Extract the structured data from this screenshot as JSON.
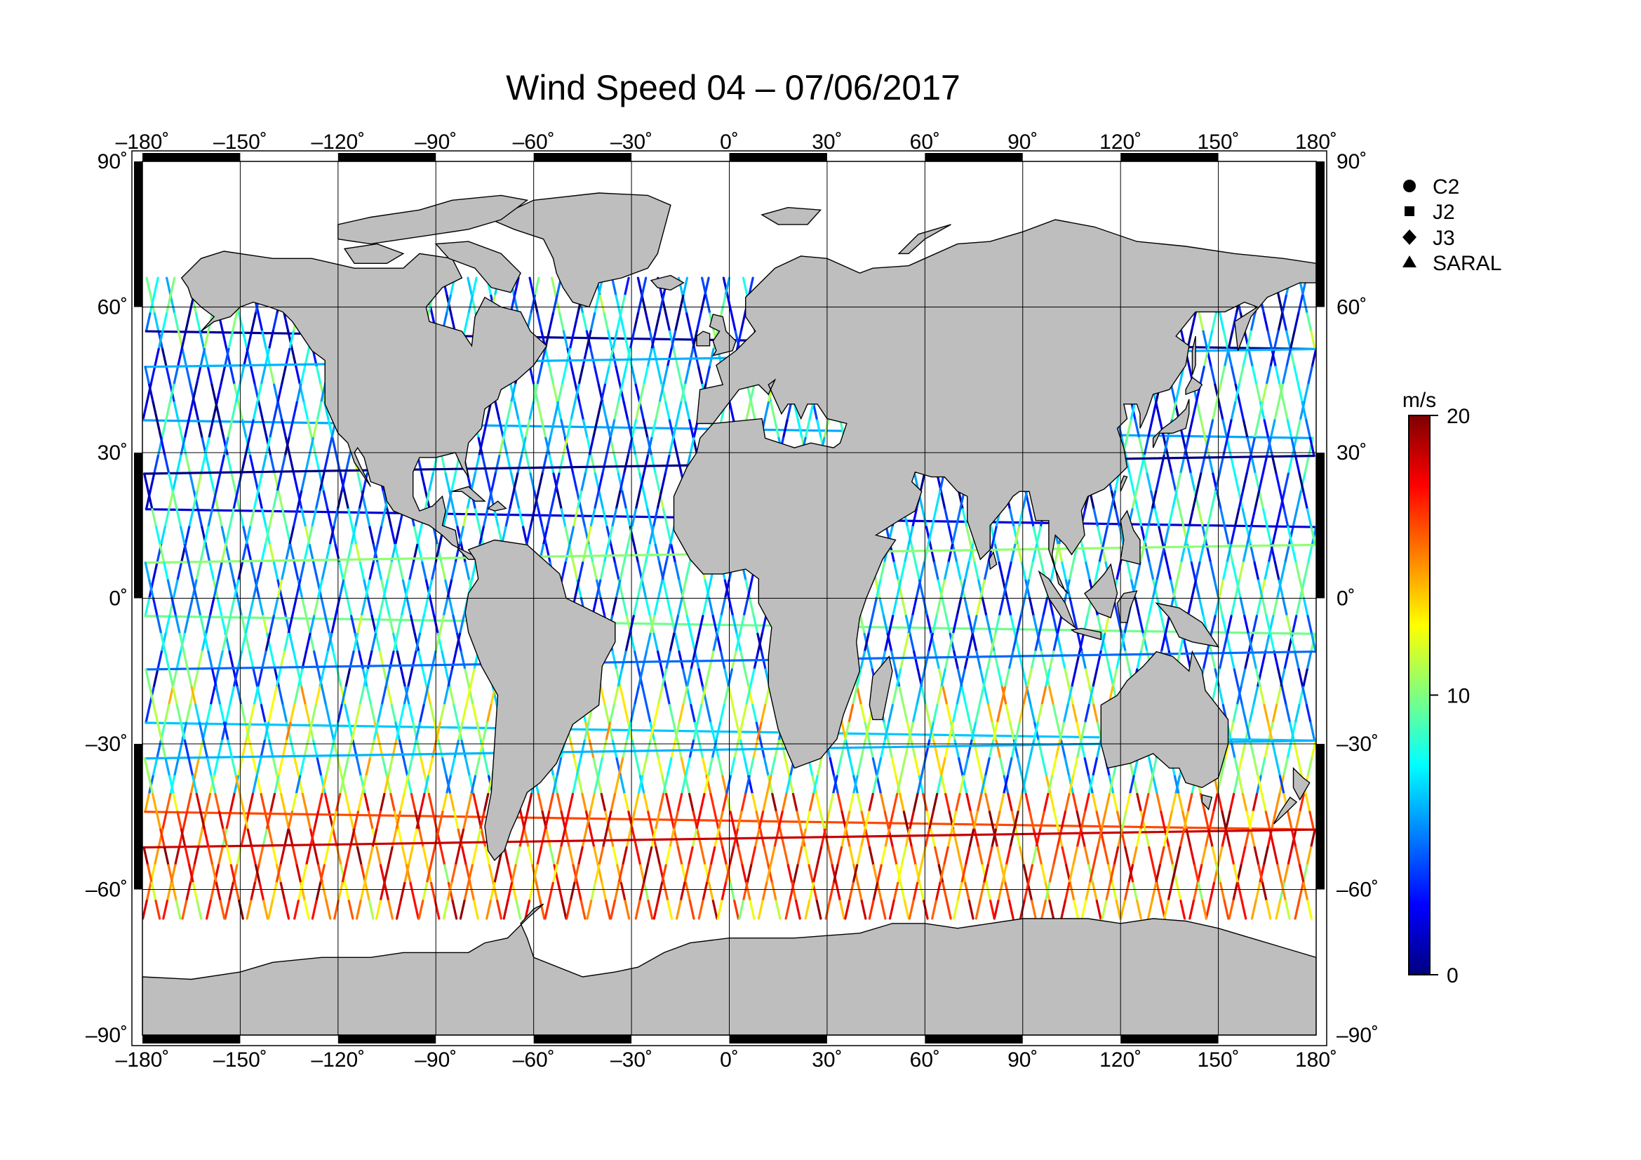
{
  "title": "Wind Speed 04 – 07/06/2017",
  "map": {
    "projection": "equirectangular",
    "lon_range": [
      -180,
      180
    ],
    "lat_range": [
      -90,
      90
    ],
    "lon_ticks": [
      {
        "value": -180,
        "label": "–180˚"
      },
      {
        "value": -150,
        "label": "–150˚"
      },
      {
        "value": -120,
        "label": "–120˚"
      },
      {
        "value": -90,
        "label": "–90˚"
      },
      {
        "value": -60,
        "label": "–60˚"
      },
      {
        "value": -30,
        "label": "–30˚"
      },
      {
        "value": 0,
        "label": "0˚"
      },
      {
        "value": 30,
        "label": "30˚"
      },
      {
        "value": 60,
        "label": "60˚"
      },
      {
        "value": 90,
        "label": "90˚"
      },
      {
        "value": 120,
        "label": "120˚"
      },
      {
        "value": 150,
        "label": "150˚"
      },
      {
        "value": 180,
        "label": "180˚"
      }
    ],
    "lat_ticks": [
      {
        "value": 90,
        "label": "90˚"
      },
      {
        "value": 60,
        "label": "60˚"
      },
      {
        "value": 30,
        "label": "30˚"
      },
      {
        "value": 0,
        "label": "0˚"
      },
      {
        "value": -30,
        "label": "–30˚"
      },
      {
        "value": -60,
        "label": "–60˚"
      },
      {
        "value": -90,
        "label": "–90˚"
      }
    ],
    "land_color": "#bebebe",
    "grid": true
  },
  "legend": {
    "items": [
      {
        "symbol": "circle",
        "label": "C2"
      },
      {
        "symbol": "square",
        "label": "J2"
      },
      {
        "symbol": "diamond",
        "label": "J3"
      },
      {
        "symbol": "triangle",
        "label": "SARAL"
      }
    ]
  },
  "colorbar": {
    "unit": "m/s",
    "min": 0,
    "max": 20,
    "tick_labels": [
      {
        "value": 20,
        "label": "20"
      },
      {
        "value": 10,
        "label": "10"
      },
      {
        "value": 0,
        "label": "0"
      }
    ],
    "colormap": [
      "#00007f",
      "#0000ff",
      "#007fff",
      "#00ffff",
      "#7fff7f",
      "#ffff00",
      "#ff7f00",
      "#ff0000",
      "#7f0000"
    ]
  }
}
